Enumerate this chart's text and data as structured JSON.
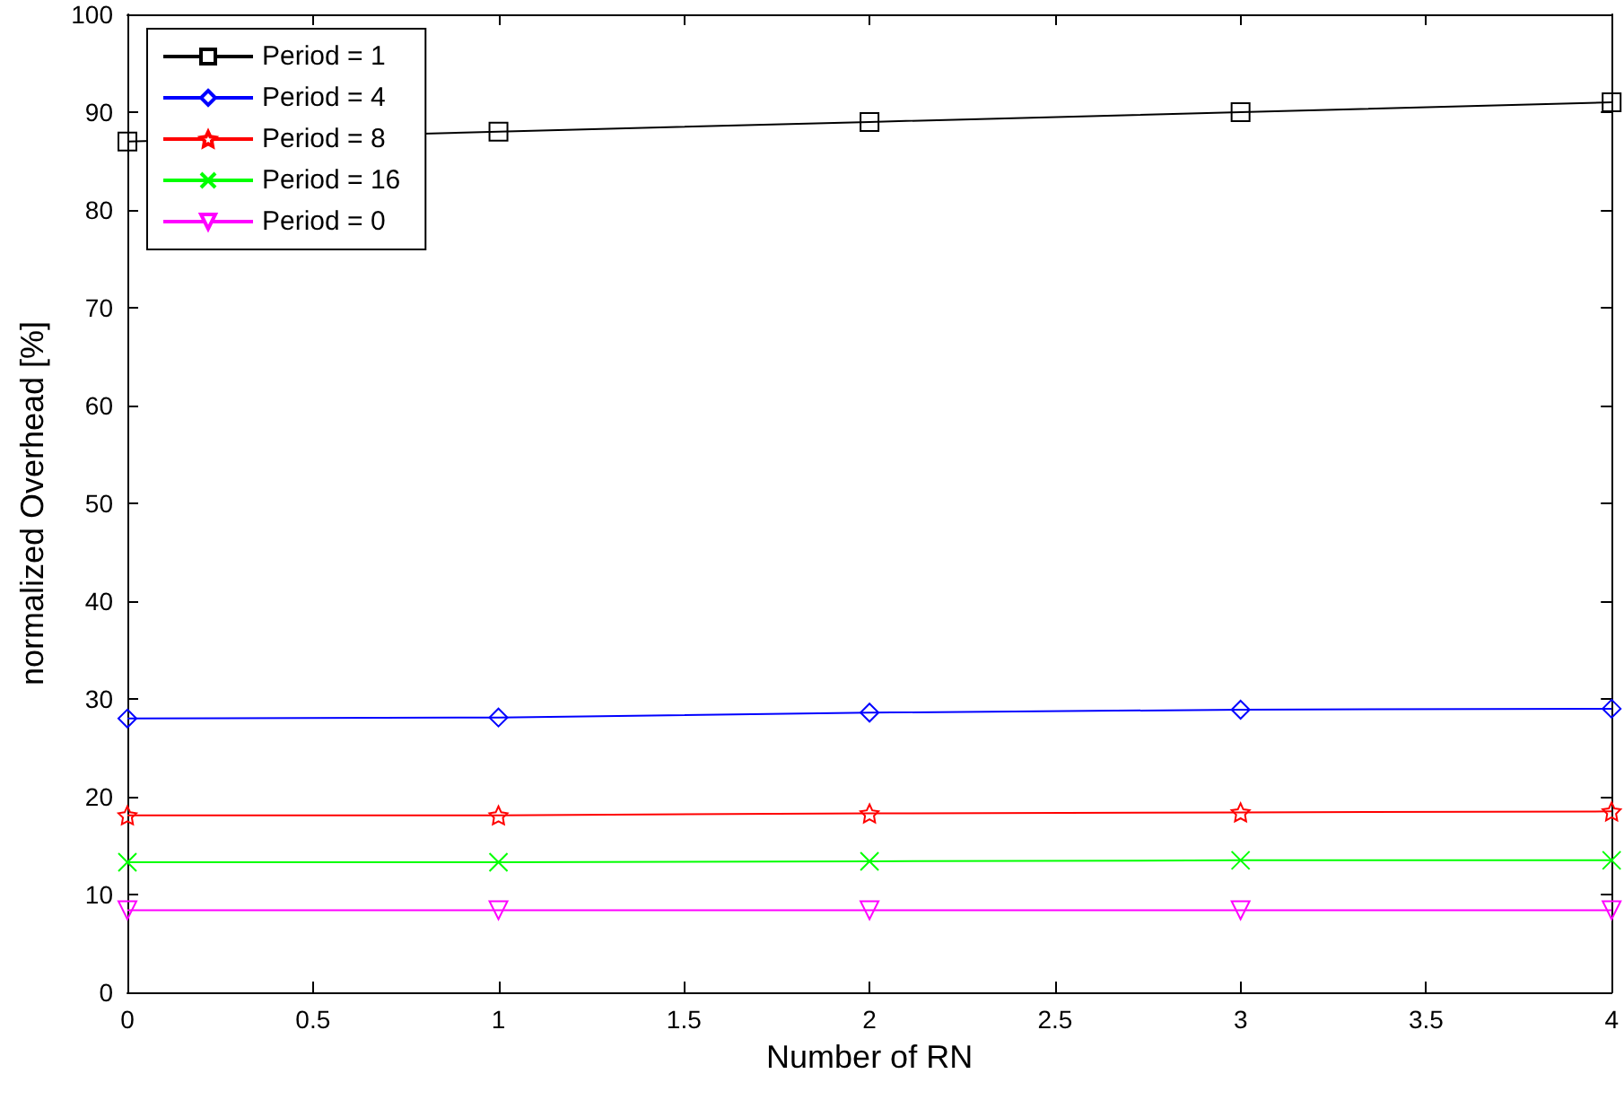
{
  "chart_data": {
    "type": "line",
    "xlabel": "Number of RN",
    "ylabel": "normalized Overhead [%]",
    "x": [
      0,
      1,
      2,
      3,
      4
    ],
    "xlim": [
      0,
      4
    ],
    "xticks": [
      0,
      0.5,
      1,
      1.5,
      2,
      2.5,
      3,
      3.5,
      4
    ],
    "ylim": [
      0,
      100
    ],
    "yticks": [
      0,
      10,
      20,
      30,
      40,
      50,
      60,
      70,
      80,
      90,
      100
    ],
    "grid": false,
    "legend": "top left",
    "line_style": "solid",
    "series": [
      {
        "name": "Period = 1",
        "color": "#000000",
        "marker": "square",
        "values": [
          87,
          88,
          89,
          90,
          91
        ]
      },
      {
        "name": "Period = 4",
        "color": "#0000ff",
        "marker": "diamond",
        "values": [
          28.0,
          28.1,
          28.6,
          28.9,
          29.0
        ]
      },
      {
        "name": "Period = 8",
        "color": "#ff0000",
        "marker": "star",
        "values": [
          18.1,
          18.1,
          18.3,
          18.4,
          18.5
        ]
      },
      {
        "name": "Period = 16",
        "color": "#00ff00",
        "marker": "cross",
        "values": [
          13.3,
          13.3,
          13.4,
          13.5,
          13.5
        ]
      },
      {
        "name": "Period = 0",
        "color": "#ff00ff",
        "marker": "triangle",
        "values": [
          8.4,
          8.4,
          8.4,
          8.4,
          8.4
        ]
      }
    ]
  }
}
